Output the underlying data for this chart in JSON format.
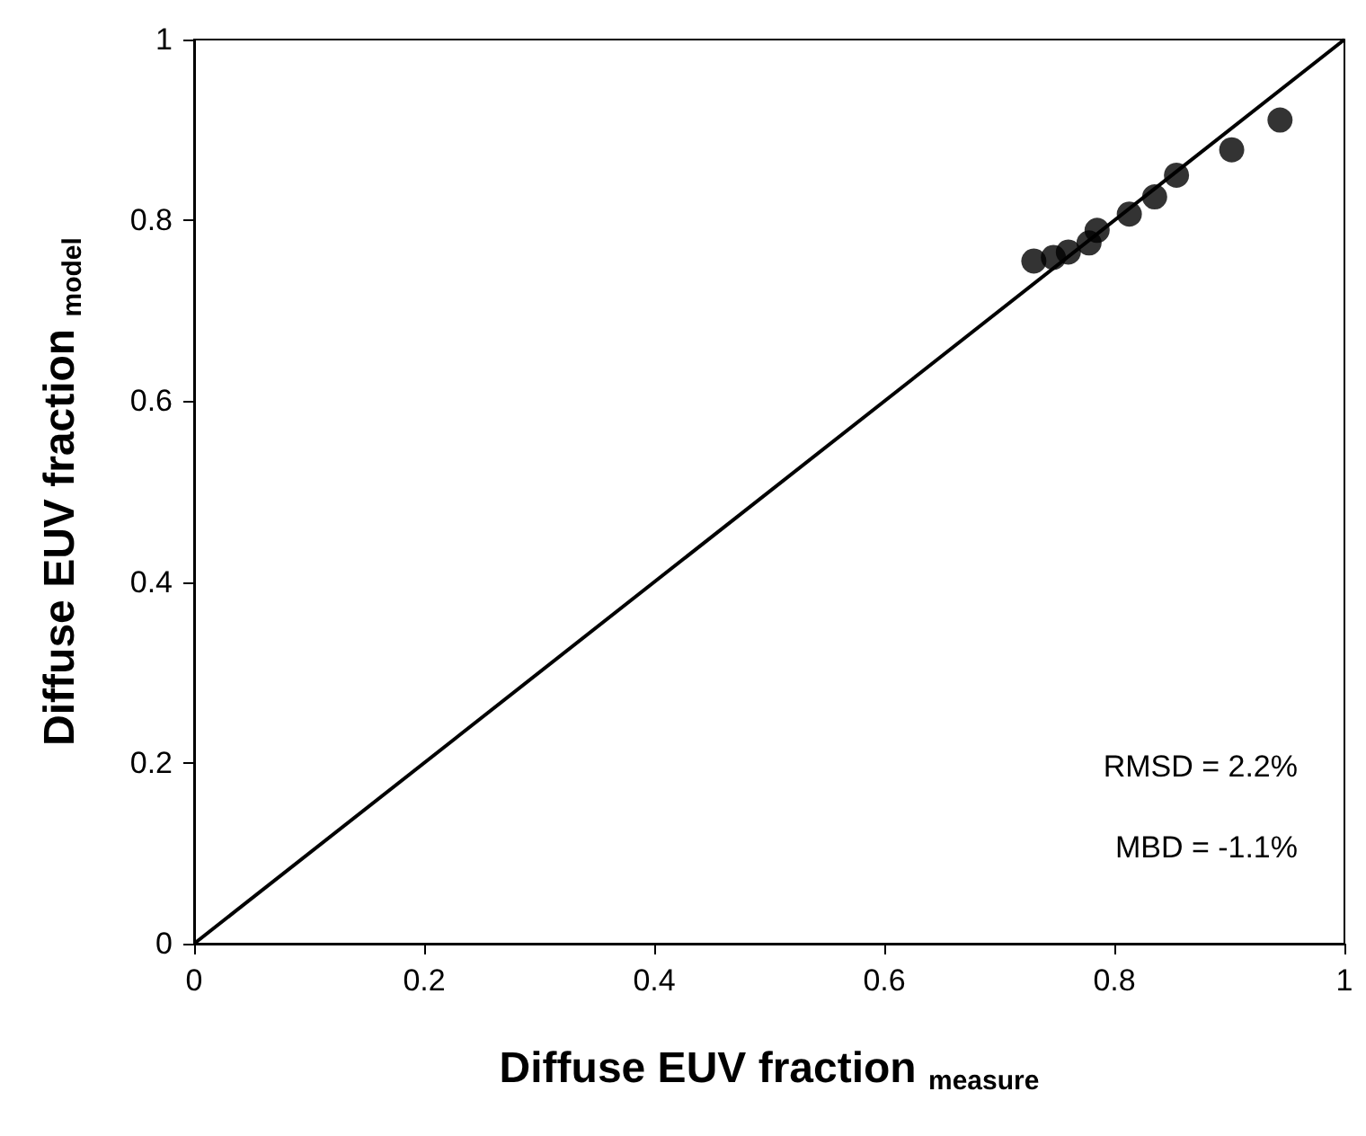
{
  "chart_data": {
    "type": "scatter",
    "xlabel": "Diffuse EUV fraction $_{measure}$",
    "ylabel": "Diffuse EUV fraction $_{model}$",
    "annotations": [
      "RMSD = 2.2%",
      "MBD = -1.1%"
    ],
    "series": [
      {
        "marker": "circle",
        "color": "#000000",
        "x": [
          0.73,
          0.747,
          0.76,
          0.778,
          0.785,
          0.813,
          0.835,
          0.854,
          0.902,
          0.944
        ],
        "values": [
          0.755,
          0.759,
          0.765,
          0.775,
          0.789,
          0.807,
          0.826,
          0.85,
          0.878,
          0.911
        ]
      },
      {
        "type": "line",
        "marker": "none",
        "line_style": "solid",
        "color": "#000000",
        "x": [
          0,
          1
        ],
        "values": [
          0,
          1
        ]
      }
    ],
    "xlim": [
      0,
      1
    ],
    "ylim": [
      0,
      1
    ],
    "xticks": [
      0,
      0.2,
      0.4,
      0.6,
      0.8,
      1
    ],
    "yticks": [
      0,
      0.2,
      0.4,
      0.6,
      0.8,
      1
    ],
    "grid": false
  }
}
